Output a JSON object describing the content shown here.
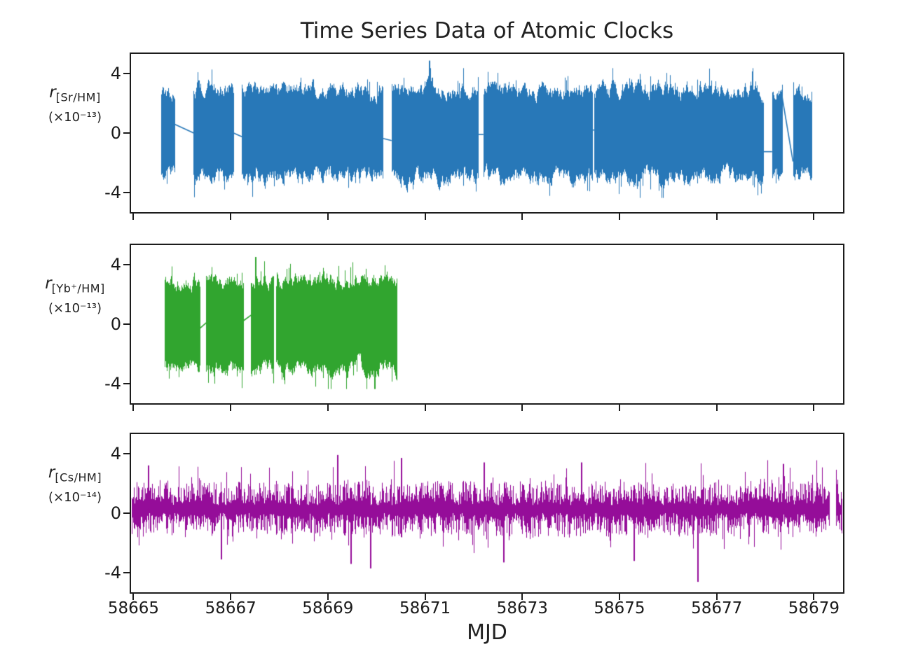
{
  "chart_data": {
    "type": "line",
    "title": "Time Series Data of Atomic Clocks",
    "xlabel": "MJD",
    "grid": false,
    "legend": null,
    "x_range": [
      58664.95,
      58679.6
    ],
    "x_ticks": [
      58665,
      58667,
      58669,
      58671,
      58673,
      58675,
      58677,
      58679
    ],
    "y_range": [
      -5.3,
      5.3
    ],
    "y_ticks": [
      4,
      0,
      -4
    ],
    "panels": [
      {
        "id": "sr-hm",
        "ylabel_symbol": "r",
        "ylabel_subscript": "[Sr/HM]",
        "ylabel_scale": "(×10⁻¹³)",
        "color": "#2878b8",
        "style": "band",
        "seed": 1137,
        "typical_amplitude": 3.1,
        "segments": [
          {
            "start": 58665.57,
            "end": 58665.84,
            "amp": 2.7
          },
          {
            "start": 58666.24,
            "end": 58667.06,
            "amp": 3.15
          },
          {
            "start": 58667.23,
            "end": 58670.12,
            "amp": 3.1
          },
          {
            "start": 58670.31,
            "end": 58672.09,
            "amp": 3.15,
            "spike_max": 4.85,
            "spike_at": 58671.08
          },
          {
            "start": 58672.2,
            "end": 58674.44,
            "amp": 3.1
          },
          {
            "start": 58674.48,
            "end": 58677.95,
            "amp": 3.15
          },
          {
            "start": 58678.14,
            "end": 58678.34,
            "amp": 3.0
          },
          {
            "start": 58678.57,
            "end": 58678.95,
            "amp": 2.9
          }
        ],
        "connectors": [
          {
            "x0": 58665.84,
            "y0": 0.6,
            "x1": 58666.24,
            "y1": 0.0
          },
          {
            "x0": 58667.06,
            "y0": 0.0,
            "x1": 58667.23,
            "y1": -0.25
          },
          {
            "x0": 58670.12,
            "y0": -0.35,
            "x1": 58670.31,
            "y1": -0.5
          },
          {
            "x0": 58672.09,
            "y0": -0.1,
            "x1": 58672.2,
            "y1": -0.1
          },
          {
            "x0": 58674.44,
            "y0": 0.2,
            "x1": 58674.48,
            "y1": 0.2
          },
          {
            "x0": 58677.95,
            "y0": -1.25,
            "x1": 58678.14,
            "y1": -1.25
          },
          {
            "x0": 58678.34,
            "y0": 2.55,
            "x1": 58678.57,
            "y1": -1.9
          }
        ]
      },
      {
        "id": "yb-hm",
        "ylabel_symbol": "r",
        "ylabel_subscript": "[Yb⁺/HM]",
        "ylabel_scale": "(×10⁻¹³)",
        "color": "#31a52f",
        "style": "band",
        "seed": 2291,
        "typical_amplitude": 3.1,
        "segments": [
          {
            "start": 58665.64,
            "end": 58666.36,
            "amp": 3.0
          },
          {
            "start": 58666.5,
            "end": 58667.25,
            "amp": 3.1
          },
          {
            "start": 58667.42,
            "end": 58667.88,
            "amp": 3.15,
            "spike_max": 4.5,
            "spike_at": 58667.5
          },
          {
            "start": 58667.94,
            "end": 58670.41,
            "amp": 3.15
          }
        ],
        "connectors": [
          {
            "x0": 58666.36,
            "y0": -0.3,
            "x1": 58666.5,
            "y1": 0.1
          },
          {
            "x0": 58667.25,
            "y0": 0.2,
            "x1": 58667.42,
            "y1": 0.6
          }
        ]
      },
      {
        "id": "cs-hm",
        "ylabel_symbol": "r",
        "ylabel_subscript": "[Cs/HM]",
        "ylabel_scale": "(×10⁻¹⁴)",
        "color": "#950d99",
        "style": "noise",
        "seed": 3373,
        "mean": 0.25,
        "typical_amplitude": 1.2,
        "segments": [
          {
            "start": 58664.97,
            "end": 58679.31,
            "amp": 1.2
          },
          {
            "start": 58679.45,
            "end": 58679.57,
            "amp": 1.2
          }
        ],
        "connectors": [],
        "spikes": [
          {
            "x": 58665.3,
            "v": 3.2
          },
          {
            "x": 58669.19,
            "v": 3.9
          },
          {
            "x": 58670.5,
            "v": 3.7
          },
          {
            "x": 58672.2,
            "v": 3.4
          },
          {
            "x": 58674.2,
            "v": 3.4
          },
          {
            "x": 58678.36,
            "v": 3.3
          },
          {
            "x": 58666.8,
            "v": -3.1
          },
          {
            "x": 58669.47,
            "v": -3.4
          },
          {
            "x": 58669.86,
            "v": -3.7
          },
          {
            "x": 58672.6,
            "v": -3.3
          },
          {
            "x": 58675.29,
            "v": -3.2
          },
          {
            "x": 58676.6,
            "v": -4.6
          }
        ]
      }
    ]
  }
}
